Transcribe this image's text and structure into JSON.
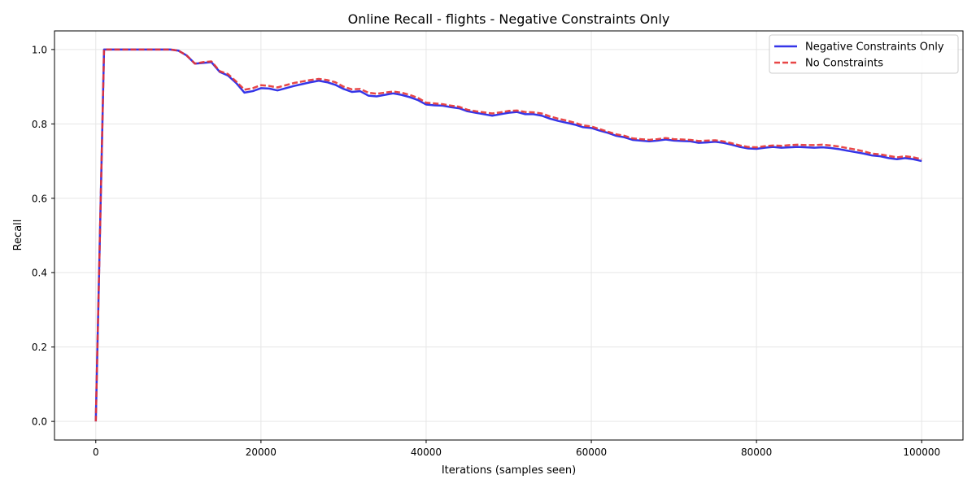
{
  "chart_data": {
    "type": "line",
    "title": "Online Recall - flights - Negative Constraints Only",
    "xlabel": "Iterations (samples seen)",
    "ylabel": "Recall",
    "xlim": [
      -5000,
      105000
    ],
    "ylim": [
      -0.05,
      1.05
    ],
    "xticks": [
      0,
      20000,
      40000,
      60000,
      80000,
      100000
    ],
    "xtick_labels": [
      "0",
      "20000",
      "40000",
      "60000",
      "80000",
      "100000"
    ],
    "yticks": [
      0.0,
      0.2,
      0.4,
      0.6,
      0.8,
      1.0
    ],
    "ytick_labels": [
      "0.0",
      "0.2",
      "0.4",
      "0.6",
      "0.8",
      "1.0"
    ],
    "grid": true,
    "legend_position": "top-right",
    "x": [
      0,
      1000,
      2000,
      3000,
      4000,
      5000,
      6000,
      7000,
      8000,
      9000,
      10000,
      11000,
      12000,
      13000,
      14000,
      15000,
      16000,
      17000,
      18000,
      19000,
      20000,
      21000,
      22000,
      23000,
      24000,
      25000,
      26000,
      27000,
      28000,
      29000,
      30000,
      31000,
      32000,
      33000,
      34000,
      35000,
      36000,
      37000,
      38000,
      39000,
      40000,
      41000,
      42000,
      43000,
      44000,
      45000,
      46000,
      47000,
      48000,
      49000,
      50000,
      51000,
      52000,
      53000,
      54000,
      55000,
      56000,
      57000,
      58000,
      59000,
      60000,
      61000,
      62000,
      63000,
      64000,
      65000,
      66000,
      67000,
      68000,
      69000,
      70000,
      71000,
      72000,
      73000,
      74000,
      75000,
      76000,
      77000,
      78000,
      79000,
      80000,
      81000,
      82000,
      83000,
      84000,
      85000,
      86000,
      87000,
      88000,
      89000,
      90000,
      91000,
      92000,
      93000,
      94000,
      95000,
      96000,
      97000,
      98000,
      99000,
      100000
    ],
    "series": [
      {
        "name": "Negative Constraints Only",
        "color": "#1f1fe6",
        "style": "solid",
        "values": [
          0.0,
          1.0,
          1.0,
          1.0,
          1.0,
          1.0,
          1.0,
          1.0,
          1.0,
          1.0,
          0.997,
          0.984,
          0.962,
          0.964,
          0.966,
          0.94,
          0.93,
          0.91,
          0.884,
          0.888,
          0.896,
          0.895,
          0.89,
          0.896,
          0.902,
          0.907,
          0.912,
          0.916,
          0.912,
          0.905,
          0.894,
          0.886,
          0.888,
          0.876,
          0.874,
          0.878,
          0.882,
          0.878,
          0.872,
          0.864,
          0.852,
          0.85,
          0.849,
          0.845,
          0.842,
          0.834,
          0.83,
          0.826,
          0.822,
          0.826,
          0.83,
          0.832,
          0.826,
          0.826,
          0.822,
          0.814,
          0.808,
          0.803,
          0.798,
          0.791,
          0.789,
          0.782,
          0.776,
          0.768,
          0.764,
          0.757,
          0.755,
          0.753,
          0.755,
          0.758,
          0.755,
          0.754,
          0.753,
          0.749,
          0.75,
          0.752,
          0.749,
          0.744,
          0.738,
          0.734,
          0.733,
          0.736,
          0.738,
          0.736,
          0.737,
          0.738,
          0.737,
          0.736,
          0.737,
          0.735,
          0.732,
          0.728,
          0.724,
          0.72,
          0.715,
          0.713,
          0.708,
          0.705,
          0.708,
          0.705,
          0.7
        ]
      },
      {
        "name": "No Constraints",
        "color": "#e63333",
        "style": "dashed",
        "values": [
          0.0,
          1.0,
          1.0,
          1.0,
          1.0,
          1.0,
          1.0,
          1.0,
          1.0,
          1.0,
          0.997,
          0.984,
          0.962,
          0.966,
          0.968,
          0.942,
          0.934,
          0.914,
          0.892,
          0.896,
          0.904,
          0.902,
          0.898,
          0.904,
          0.91,
          0.914,
          0.918,
          0.921,
          0.918,
          0.912,
          0.9,
          0.893,
          0.894,
          0.884,
          0.881,
          0.884,
          0.887,
          0.884,
          0.878,
          0.87,
          0.857,
          0.855,
          0.853,
          0.849,
          0.846,
          0.838,
          0.834,
          0.831,
          0.828,
          0.831,
          0.835,
          0.836,
          0.832,
          0.831,
          0.828,
          0.82,
          0.814,
          0.809,
          0.803,
          0.796,
          0.793,
          0.786,
          0.779,
          0.772,
          0.768,
          0.761,
          0.759,
          0.757,
          0.759,
          0.762,
          0.759,
          0.758,
          0.757,
          0.754,
          0.755,
          0.756,
          0.753,
          0.748,
          0.742,
          0.738,
          0.737,
          0.74,
          0.742,
          0.741,
          0.743,
          0.744,
          0.743,
          0.743,
          0.744,
          0.742,
          0.739,
          0.735,
          0.731,
          0.726,
          0.72,
          0.718,
          0.714,
          0.71,
          0.713,
          0.71,
          0.705
        ]
      }
    ]
  }
}
